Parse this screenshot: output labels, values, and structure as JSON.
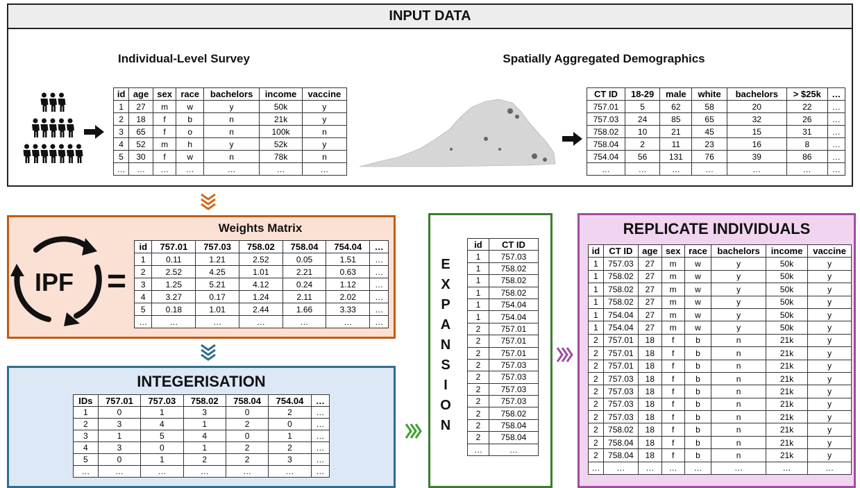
{
  "input": {
    "title": "INPUT DATA",
    "survey": {
      "title": "Individual-Level Survey",
      "table": {
        "header": [
          "id",
          "age",
          "sex",
          "race",
          "bachelors",
          "income",
          "vaccine"
        ],
        "rows": [
          [
            "1",
            "27",
            "m",
            "w",
            "y",
            "50k",
            "y"
          ],
          [
            "2",
            "18",
            "f",
            "b",
            "n",
            "21k",
            "y"
          ],
          [
            "3",
            "65",
            "f",
            "o",
            "n",
            "100k",
            "n"
          ],
          [
            "4",
            "52",
            "m",
            "h",
            "y",
            "52k",
            "y"
          ],
          [
            "5",
            "30",
            "f",
            "w",
            "n",
            "78k",
            "n"
          ],
          [
            "…",
            "…",
            "…",
            "…",
            "…",
            "…",
            "…"
          ]
        ]
      }
    },
    "aggregated": {
      "title": "Spatially Aggregated Demographics",
      "table": {
        "header": [
          "CT ID",
          "18-29",
          "male",
          "white",
          "bachelors",
          "> $25k",
          "…"
        ],
        "rows": [
          [
            "757.01",
            "5",
            "62",
            "58",
            "20",
            "22",
            "…"
          ],
          [
            "757.03",
            "24",
            "85",
            "65",
            "32",
            "26",
            "…"
          ],
          [
            "758.02",
            "10",
            "21",
            "45",
            "15",
            "31",
            "…"
          ],
          [
            "758.04",
            "2",
            "11",
            "23",
            "16",
            "8",
            "…"
          ],
          [
            "754.04",
            "56",
            "131",
            "76",
            "39",
            "86",
            "…"
          ],
          [
            "…",
            "…",
            "…",
            "…",
            "…",
            "…",
            "…"
          ]
        ]
      }
    }
  },
  "weights": {
    "method": "IPF",
    "equals": "=",
    "title": "Weights Matrix",
    "table": {
      "header": [
        "id",
        "757.01",
        "757.03",
        "758.02",
        "758.04",
        "754.04",
        "…"
      ],
      "rows": [
        [
          "1",
          "0.11",
          "1.21",
          "2.52",
          "0.05",
          "1.51",
          "…"
        ],
        [
          "2",
          "2.52",
          "4.25",
          "1.01",
          "2.21",
          "0.63",
          "…"
        ],
        [
          "3",
          "1.25",
          "5.21",
          "4.12",
          "0.24",
          "1.12",
          "…"
        ],
        [
          "4",
          "3.27",
          "0.17",
          "1.24",
          "2.11",
          "2.02",
          "…"
        ],
        [
          "5",
          "0.18",
          "1.01",
          "2.44",
          "1.66",
          "3.33",
          "…"
        ],
        [
          "…",
          "…",
          "…",
          "…",
          "…",
          "…",
          "…"
        ]
      ]
    }
  },
  "integerisation": {
    "title": "INTEGERISATION",
    "table": {
      "header": [
        "IDs",
        "757.01",
        "757.03",
        "758.02",
        "758.04",
        "754.04",
        "…"
      ],
      "rows": [
        [
          "1",
          "0",
          "1",
          "3",
          "0",
          "2",
          "…"
        ],
        [
          "2",
          "3",
          "4",
          "1",
          "2",
          "0",
          "…"
        ],
        [
          "3",
          "1",
          "5",
          "4",
          "0",
          "1",
          "…"
        ],
        [
          "4",
          "3",
          "0",
          "1",
          "2",
          "2",
          "…"
        ],
        [
          "5",
          "0",
          "1",
          "2",
          "2",
          "3",
          "…"
        ],
        [
          "…",
          "…",
          "…",
          "…",
          "…",
          "…",
          "…"
        ]
      ]
    }
  },
  "expansion": {
    "title": "EXPANSION",
    "table": {
      "header": [
        "id",
        "CT ID"
      ],
      "rows": [
        [
          "1",
          "757.03"
        ],
        [
          "1",
          "758.02"
        ],
        [
          "1",
          "758.02"
        ],
        [
          "1",
          "758.02"
        ],
        [
          "1",
          "754.04"
        ],
        [
          "1",
          "754.04"
        ],
        [
          "2",
          "757.01"
        ],
        [
          "2",
          "757.01"
        ],
        [
          "2",
          "757.01"
        ],
        [
          "2",
          "757.03"
        ],
        [
          "2",
          "757.03"
        ],
        [
          "2",
          "757.03"
        ],
        [
          "2",
          "757.03"
        ],
        [
          "2",
          "758.02"
        ],
        [
          "2",
          "758.04"
        ],
        [
          "2",
          "758.04"
        ],
        [
          "…",
          "…"
        ]
      ]
    }
  },
  "replicate": {
    "title": "REPLICATE INDIVIDUALS",
    "table": {
      "header": [
        "id",
        "CT ID",
        "age",
        "sex",
        "race",
        "bachelors",
        "income",
        "vaccine"
      ],
      "rows": [
        [
          "1",
          "757.03",
          "27",
          "m",
          "w",
          "y",
          "50k",
          "y"
        ],
        [
          "1",
          "758.02",
          "27",
          "m",
          "w",
          "y",
          "50k",
          "y"
        ],
        [
          "1",
          "758.02",
          "27",
          "m",
          "w",
          "y",
          "50k",
          "y"
        ],
        [
          "1",
          "758.02",
          "27",
          "m",
          "w",
          "y",
          "50k",
          "y"
        ],
        [
          "1",
          "754.04",
          "27",
          "m",
          "w",
          "y",
          "50k",
          "y"
        ],
        [
          "1",
          "754.04",
          "27",
          "m",
          "w",
          "y",
          "50k",
          "y"
        ],
        [
          "2",
          "757.01",
          "18",
          "f",
          "b",
          "n",
          "21k",
          "y"
        ],
        [
          "2",
          "757.01",
          "18",
          "f",
          "b",
          "n",
          "21k",
          "y"
        ],
        [
          "2",
          "757.01",
          "18",
          "f",
          "b",
          "n",
          "21k",
          "y"
        ],
        [
          "2",
          "757.03",
          "18",
          "f",
          "b",
          "n",
          "21k",
          "y"
        ],
        [
          "2",
          "757.03",
          "18",
          "f",
          "b",
          "n",
          "21k",
          "y"
        ],
        [
          "2",
          "757.03",
          "18",
          "f",
          "b",
          "n",
          "21k",
          "y"
        ],
        [
          "2",
          "757.03",
          "18",
          "f",
          "b",
          "n",
          "21k",
          "y"
        ],
        [
          "2",
          "758.02",
          "18",
          "f",
          "b",
          "n",
          "21k",
          "y"
        ],
        [
          "2",
          "758.04",
          "18",
          "f",
          "b",
          "n",
          "21k",
          "y"
        ],
        [
          "2",
          "758.04",
          "18",
          "f",
          "b",
          "n",
          "21k",
          "y"
        ],
        [
          "…",
          "…",
          "…",
          "…",
          "…",
          "…",
          "…",
          "…"
        ]
      ]
    }
  }
}
